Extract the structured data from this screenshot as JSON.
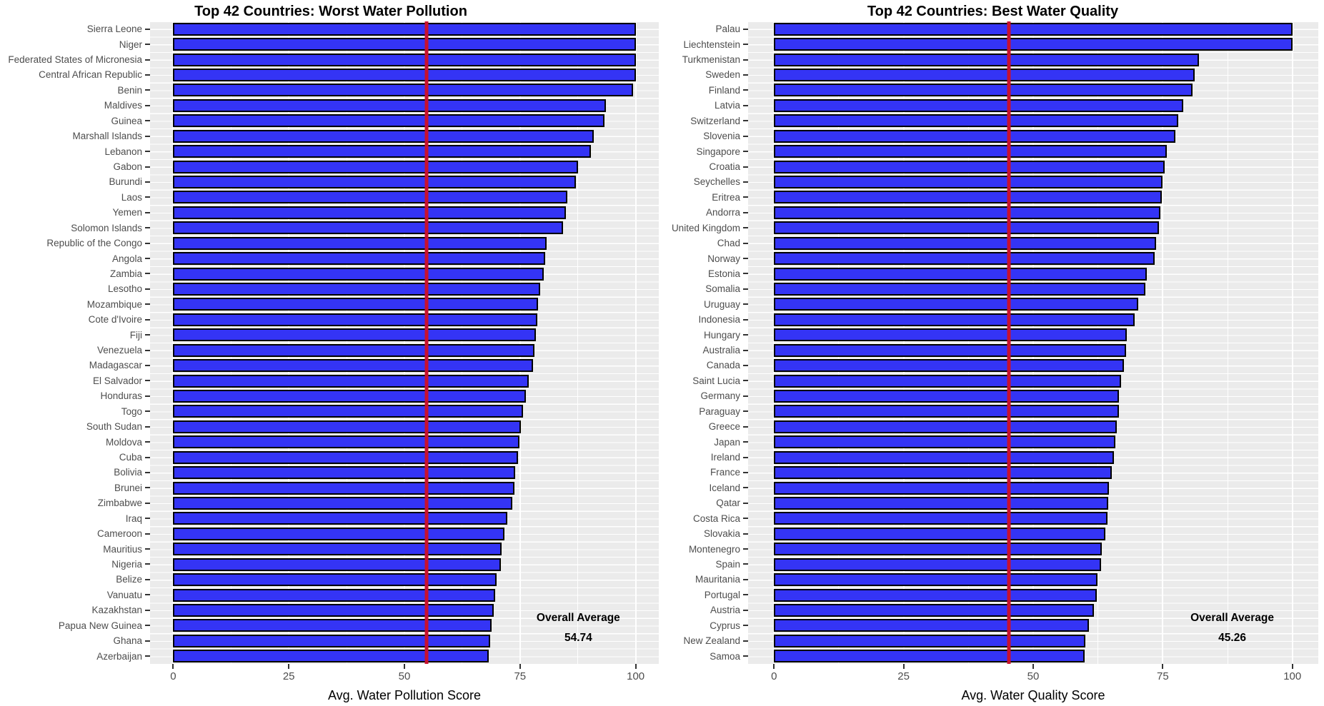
{
  "style": {
    "bar_fill": "#3434F5",
    "bar_border": "#000000",
    "panel_background": "#EBEBEB",
    "grid_color": "#FFFFFF",
    "avg_line_color": "#C8112F",
    "axis_text_color": "#4D4D4D"
  },
  "chart_data": [
    {
      "type": "bar",
      "orientation": "horizontal",
      "title": "Top 42 Countries: Worst Water Pollution",
      "xlabel": "Avg. Water Pollution Score",
      "ylabel": "",
      "xlim": [
        0,
        100
      ],
      "x_domain": [
        -5,
        105
      ],
      "x_ticks": [
        0,
        25,
        50,
        75,
        100
      ],
      "x_minor_ticks": [
        12.5,
        37.5,
        62.5,
        87.5
      ],
      "grid": true,
      "average_line": 54.74,
      "annotation": {
        "label": "Overall Average",
        "value": "54.74",
        "x": 87.6
      },
      "categories": [
        "Sierra Leone",
        "Niger",
        "Federated States of Micronesia",
        "Central African Republic",
        "Benin",
        "Maldives",
        "Guinea",
        "Marshall Islands",
        "Lebanon",
        "Gabon",
        "Burundi",
        "Laos",
        "Yemen",
        "Solomon Islands",
        "Republic of the Congo",
        "Angola",
        "Zambia",
        "Lesotho",
        "Mozambique",
        "Cote d'Ivoire",
        "Fiji",
        "Venezuela",
        "Madagascar",
        "El Salvador",
        "Honduras",
        "Togo",
        "South Sudan",
        "Moldova",
        "Cuba",
        "Bolivia",
        "Brunei",
        "Zimbabwe",
        "Iraq",
        "Cameroon",
        "Mauritius",
        "Nigeria",
        "Belize",
        "Vanuatu",
        "Kazakhstan",
        "Papua New Guinea",
        "Ghana",
        "Azerbaijan"
      ],
      "values": [
        100,
        100,
        100,
        100,
        99.5,
        93.5,
        93.2,
        91,
        90.3,
        87.5,
        87.1,
        85.2,
        84.9,
        84.3,
        80.8,
        80.4,
        80.1,
        79.4,
        78.9,
        78.7,
        78.5,
        78.1,
        77.8,
        76.9,
        76.2,
        75.7,
        75.2,
        74.9,
        74.6,
        74,
        73.8,
        73.4,
        72.2,
        71.6,
        71,
        70.8,
        70,
        69.6,
        69.3,
        68.8,
        68.5,
        68.3
      ]
    },
    {
      "type": "bar",
      "orientation": "horizontal",
      "title": "Top 42 Countries: Best Water Quality",
      "xlabel": "Avg. Water Quality Score",
      "ylabel": "",
      "xlim": [
        0,
        100
      ],
      "x_domain": [
        -5,
        105
      ],
      "x_ticks": [
        0,
        25,
        50,
        75,
        100
      ],
      "x_minor_ticks": [
        12.5,
        37.5,
        62.5,
        87.5
      ],
      "grid": true,
      "average_line": 45.26,
      "annotation": {
        "label": "Overall Average",
        "value": "45.26",
        "x": 88.4
      },
      "categories": [
        "Palau",
        "Liechtenstein",
        "Turkmenistan",
        "Sweden",
        "Finland",
        "Latvia",
        "Switzerland",
        "Slovenia",
        "Singapore",
        "Croatia",
        "Seychelles",
        "Eritrea",
        "Andorra",
        "United Kingdom",
        "Chad",
        "Norway",
        "Estonia",
        "Somalia",
        "Uruguay",
        "Indonesia",
        "Hungary",
        "Australia",
        "Canada",
        "Saint Lucia",
        "Germany",
        "Paraguay",
        "Greece",
        "Japan",
        "Ireland",
        "France",
        "Iceland",
        "Qatar",
        "Costa Rica",
        "Slovakia",
        "Montenegro",
        "Spain",
        "Mauritania",
        "Portugal",
        "Austria",
        "Cyprus",
        "New Zealand",
        "Samoa"
      ],
      "values": [
        100,
        100,
        82,
        81.2,
        80.7,
        79,
        78,
        77.4,
        75.8,
        75.4,
        74.9,
        74.8,
        74.6,
        74.2,
        73.7,
        73.4,
        71.9,
        71.6,
        70.3,
        69.6,
        68.1,
        67.9,
        67.5,
        67,
        66.6,
        66.5,
        66.1,
        65.9,
        65.6,
        65.1,
        64.6,
        64.5,
        64.3,
        63.9,
        63.3,
        63.1,
        62.4,
        62.3,
        61.7,
        60.8,
        60.1,
        59.9
      ]
    }
  ]
}
